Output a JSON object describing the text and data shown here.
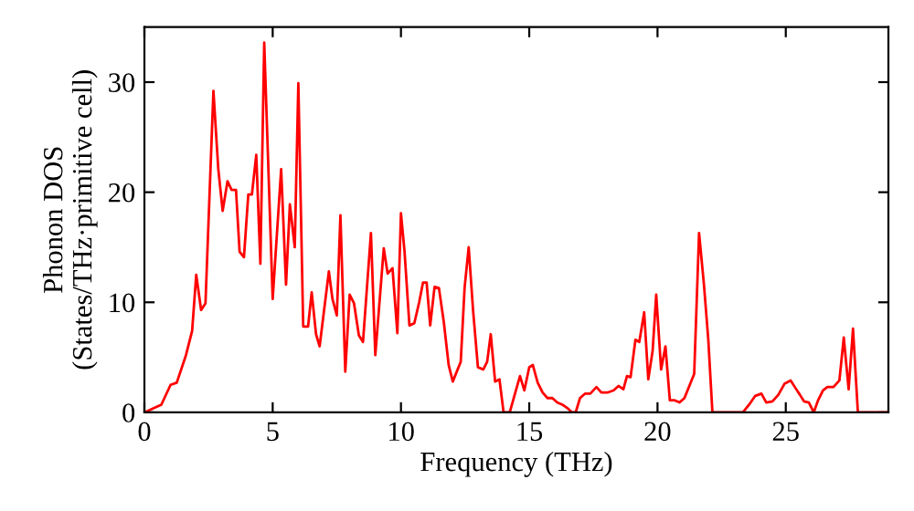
{
  "chart_data": {
    "type": "line",
    "xlabel": "Frequency (THz)",
    "ylabel": "Phonon DOS\n(States/THz·primitive cell)",
    "xlim": [
      0,
      29
    ],
    "ylim": [
      0,
      35
    ],
    "xticks": [
      0,
      5,
      10,
      15,
      20,
      25
    ],
    "yticks": [
      0,
      10,
      20,
      30
    ],
    "grid": false,
    "marker": "none",
    "line_style": "solid",
    "series": [
      {
        "color": "#ff0000",
        "x": [
          0,
          0.66,
          1.02,
          1.26,
          1.62,
          1.86,
          2.02,
          2.21,
          2.38,
          2.69,
          2.88,
          3.05,
          3.24,
          3.4,
          3.57,
          3.71,
          3.88,
          4.05,
          4.19,
          4.36,
          4.52,
          4.67,
          5.0,
          5.33,
          5.52,
          5.67,
          5.86,
          6.0,
          6.19,
          6.38,
          6.52,
          6.69,
          6.83,
          7.19,
          7.33,
          7.5,
          7.64,
          7.83,
          8.0,
          8.17,
          8.36,
          8.52,
          8.83,
          9.0,
          9.33,
          9.48,
          9.67,
          9.86,
          10.0,
          10.14,
          10.33,
          10.52,
          10.71,
          10.86,
          11.0,
          11.14,
          11.31,
          11.48,
          11.67,
          11.86,
          12.02,
          12.33,
          12.48,
          12.64,
          12.81,
          13.0,
          13.21,
          13.36,
          13.5,
          13.67,
          13.84,
          14.0,
          14.24,
          14.48,
          14.64,
          14.81,
          15.0,
          15.14,
          15.33,
          15.52,
          15.71,
          15.9,
          16.09,
          16.29,
          16.48,
          16.67,
          16.81,
          16.98,
          17.17,
          17.38,
          17.62,
          17.81,
          18.05,
          18.29,
          18.48,
          18.67,
          18.81,
          18.95,
          19.14,
          19.29,
          19.48,
          19.64,
          19.81,
          19.95,
          20.14,
          20.31,
          20.48,
          20.67,
          20.86,
          21.05,
          21.24,
          21.43,
          21.62,
          21.81,
          21.98,
          22.14,
          23.33,
          23.57,
          23.81,
          24.05,
          24.24,
          24.48,
          24.71,
          24.95,
          25.19,
          25.38,
          25.55,
          25.71,
          25.9,
          26.09,
          26.26,
          26.45,
          26.62,
          26.86,
          27.09,
          27.26,
          27.45,
          27.62,
          27.81,
          29.0
        ],
        "values": [
          0,
          0.7,
          2.5,
          2.7,
          5.2,
          7.4,
          12.5,
          9.3,
          9.9,
          29.2,
          22.1,
          18.3,
          21.0,
          20.2,
          20.2,
          14.6,
          14.1,
          19.8,
          19.8,
          23.4,
          13.5,
          33.6,
          10.3,
          22.1,
          11.6,
          18.9,
          15.0,
          29.9,
          7.8,
          7.8,
          10.9,
          7.1,
          6.0,
          12.8,
          10.3,
          8.8,
          17.9,
          3.7,
          10.7,
          9.9,
          7.0,
          6.4,
          16.3,
          5.2,
          14.9,
          12.6,
          13.1,
          7.2,
          18.1,
          14.6,
          7.9,
          8.1,
          10.0,
          11.8,
          11.8,
          7.9,
          11.4,
          11.3,
          8.2,
          4.3,
          2.8,
          4.6,
          11.3,
          15.0,
          9.3,
          4.1,
          3.9,
          4.6,
          7.1,
          2.8,
          3.0,
          0,
          0,
          2.0,
          3.3,
          2.0,
          4.1,
          4.3,
          2.7,
          1.8,
          1.3,
          1.3,
          0.9,
          0.7,
          0.4,
          0,
          0,
          1.3,
          1.7,
          1.7,
          2.3,
          1.8,
          1.8,
          2.0,
          2.4,
          2.1,
          3.3,
          3.2,
          6.6,
          6.4,
          9.1,
          3.0,
          5.6,
          10.7,
          3.9,
          6.0,
          1.1,
          1.1,
          0.9,
          1.3,
          2.4,
          3.5,
          16.3,
          11.6,
          6.6,
          0,
          0,
          0.7,
          1.5,
          1.7,
          0.9,
          1.0,
          1.6,
          2.6,
          2.9,
          2.2,
          1.6,
          1.0,
          0.9,
          0,
          1.1,
          2.0,
          2.3,
          2.3,
          2.9,
          6.8,
          2.1,
          7.6,
          0,
          0
        ]
      }
    ]
  }
}
